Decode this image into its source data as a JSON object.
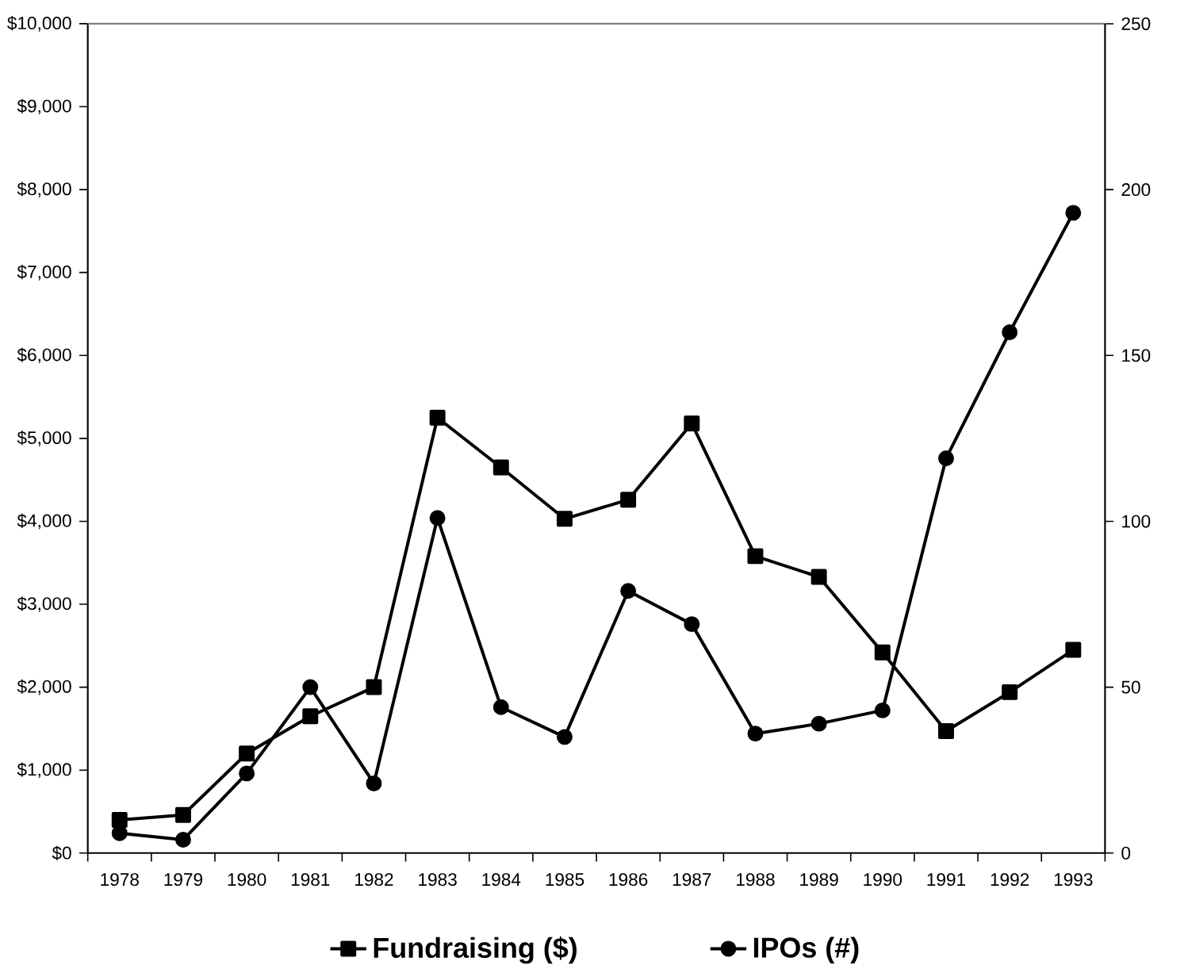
{
  "chart_data": {
    "type": "line",
    "categories": [
      "1978",
      "1979",
      "1980",
      "1981",
      "1982",
      "1983",
      "1984",
      "1985",
      "1986",
      "1987",
      "1988",
      "1989",
      "1990",
      "1991",
      "1992",
      "1993"
    ],
    "series": [
      {
        "name": "Fundraising ($)",
        "color": "#000000",
        "marker": "square",
        "values": [
          400,
          460,
          1200,
          1650,
          2000,
          5250,
          4650,
          4030,
          4260,
          5180,
          3580,
          3330,
          2420,
          1470,
          1940,
          2450
        ]
      },
      {
        "name": "IPOs (#)",
        "color": "#000000",
        "marker": "circle",
        "axis": "y2",
        "values": [
          6,
          4,
          24,
          50,
          21,
          101,
          44,
          35,
          79,
          69,
          36,
          39,
          43,
          119,
          157,
          193
        ]
      }
    ],
    "ylim": [
      0,
      10000
    ],
    "yticks": [
      {
        "value": 0,
        "label": "$0"
      },
      {
        "value": 1000,
        "label": "$1,000"
      },
      {
        "value": 2000,
        "label": "$2,000"
      },
      {
        "value": 3000,
        "label": "$3,000"
      },
      {
        "value": 4000,
        "label": "$4,000"
      },
      {
        "value": 5000,
        "label": "$5,000"
      },
      {
        "value": 6000,
        "label": "$6,000"
      },
      {
        "value": 7000,
        "label": "$7,000"
      },
      {
        "value": 8000,
        "label": "$8,000"
      },
      {
        "value": 9000,
        "label": "$9,000"
      },
      {
        "value": 10000,
        "label": "$10,000"
      }
    ],
    "y2lim": [
      0,
      250
    ],
    "y2ticks": [
      0,
      50,
      100,
      150,
      200,
      250
    ],
    "legend": "bottom",
    "line_style": "solid",
    "grid": false
  }
}
